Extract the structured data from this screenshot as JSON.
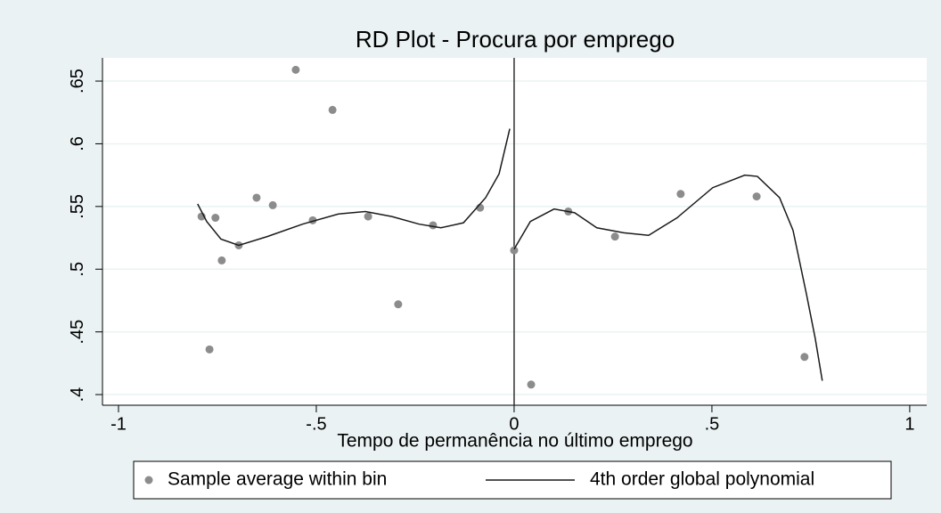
{
  "chart_data": {
    "type": "scatter",
    "title": "RD Plot - Procura por emprego",
    "x_label": "Tempo de permanência no último emprego",
    "xlim": [
      -1.0405,
      1.043
    ],
    "ylim": [
      0.3915,
      0.6685
    ],
    "xticks": [
      -1,
      {
        "value": -0.5,
        "label": "-.5"
      },
      0,
      {
        "value": 0.5,
        "label": ".5"
      },
      1
    ],
    "yticks": [
      {
        "value": 0.4,
        "label": ".4"
      },
      {
        "value": 0.45,
        "label": ".45"
      },
      {
        "value": 0.5,
        "label": ".5"
      },
      {
        "value": 0.55,
        "label": ".55"
      },
      {
        "value": 0.6,
        "label": ".6"
      },
      {
        "value": 0.65,
        "label": ".65"
      }
    ],
    "grid": true,
    "xline": 0,
    "series": [
      {
        "name": "Sample average within bin",
        "kind": "scatter",
        "color": "#8c8c8c",
        "x": [
          -0.79,
          -0.755,
          -0.77,
          -0.739,
          -0.696,
          -0.651,
          -0.61,
          -0.552,
          -0.509,
          -0.459,
          -0.369,
          -0.293,
          -0.205,
          -0.086,
          0.0,
          0.043,
          0.137,
          0.255,
          0.421,
          0.613,
          0.734
        ],
        "values": [
          0.542,
          0.541,
          0.436,
          0.507,
          0.519,
          0.557,
          0.551,
          0.659,
          0.539,
          0.627,
          0.542,
          0.472,
          0.535,
          0.549,
          0.515,
          0.408,
          0.546,
          0.526,
          0.56,
          0.558,
          0.43
        ]
      },
      {
        "name": "4th order global polynomial",
        "kind": "line",
        "color": "#1a1a1a",
        "x": [
          -0.8,
          -0.777,
          -0.741,
          -0.696,
          -0.624,
          -0.534,
          -0.444,
          -0.376,
          -0.309,
          -0.241,
          -0.185,
          -0.128,
          -0.072,
          -0.038,
          -0.011,
          null,
          0.0,
          0.041,
          0.101,
          0.153,
          0.209,
          0.277,
          0.34,
          0.412,
          0.502,
          0.583,
          0.615,
          0.671,
          0.705,
          0.739,
          0.761,
          0.779
        ],
        "values": [
          0.552,
          0.538,
          0.524,
          0.519,
          0.526,
          0.536,
          0.544,
          0.546,
          0.542,
          0.536,
          0.533,
          0.537,
          0.557,
          0.576,
          0.612,
          null,
          0.516,
          0.538,
          0.548,
          0.545,
          0.533,
          0.529,
          0.527,
          0.541,
          0.565,
          0.575,
          0.574,
          0.557,
          0.531,
          0.48,
          0.445,
          0.411
        ]
      }
    ]
  }
}
